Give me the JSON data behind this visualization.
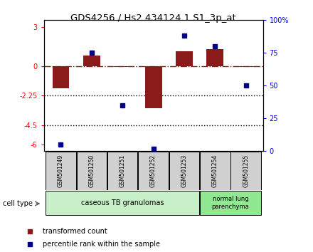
{
  "title": "GDS4256 / Hs2.434124.1.S1_3p_at",
  "samples": [
    "GSM501249",
    "GSM501250",
    "GSM501251",
    "GSM501252",
    "GSM501253",
    "GSM501254",
    "GSM501255"
  ],
  "red_bars": [
    -1.7,
    0.8,
    -0.05,
    -3.2,
    1.1,
    1.3,
    -0.05
  ],
  "blue_dot_pct": [
    5,
    75,
    35,
    2,
    88,
    80,
    50
  ],
  "red_yticks": [
    3,
    0,
    -2.25,
    -4.5,
    -6
  ],
  "red_yticklabels": [
    "3",
    "0",
    "-2.25",
    "-4.5",
    "-6"
  ],
  "blue_yticks": [
    100,
    75,
    50,
    25,
    0
  ],
  "blue_yticklabels": [
    "100%",
    "75",
    "50",
    "25",
    "0"
  ],
  "ylim_left": [
    -6.5,
    3.5
  ],
  "ylim_right": [
    0,
    100
  ],
  "group1_indices": [
    0,
    1,
    2,
    3,
    4
  ],
  "group1_label": "caseous TB granulomas",
  "group1_color": "#c8f0c8",
  "group2_indices": [
    5,
    6
  ],
  "group2_label": "normal lung\nparenchyma",
  "group2_color": "#90e890",
  "cell_type_label": "cell type",
  "legend_red_label": "transformed count",
  "legend_blue_label": "percentile rank within the sample",
  "bar_color": "#8b1a1a",
  "dot_color": "#00008b",
  "hline_y": 0,
  "dotted_lines": [
    -2.25,
    -4.5
  ],
  "sample_box_color": "#d0d0d0",
  "plot_bg": "#ffffff"
}
